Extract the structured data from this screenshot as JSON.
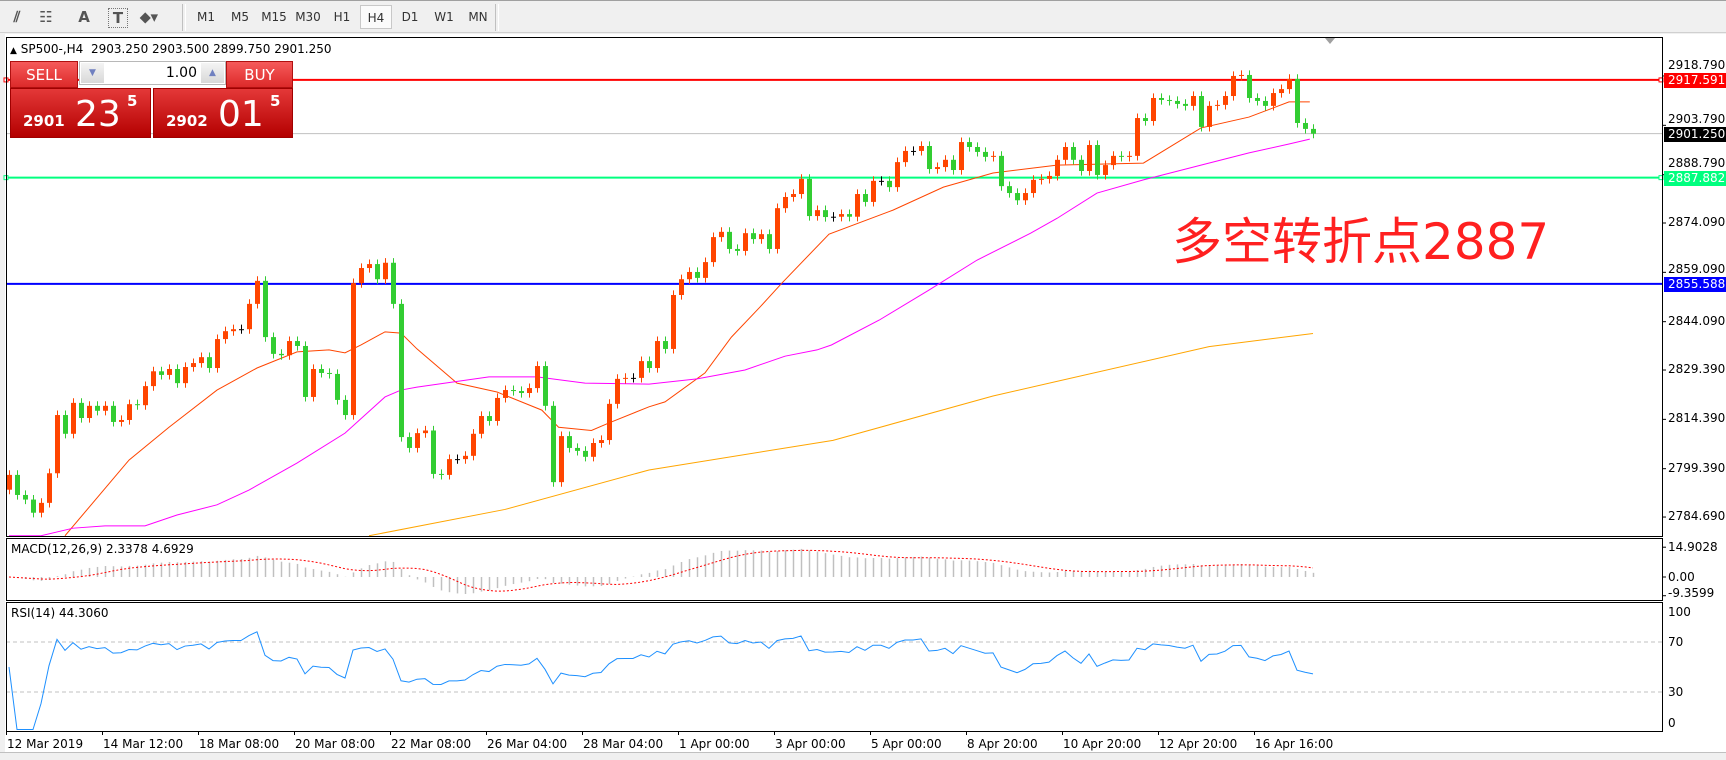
{
  "toolbar": {
    "tools": [
      {
        "icon": "equidistant-channel-icon",
        "glyph": "⫽"
      },
      {
        "icon": "fibonacci-icon",
        "glyph": "☷"
      },
      {
        "icon": "text-icon",
        "glyph": "A"
      },
      {
        "icon": "text-label-icon",
        "glyph": "T"
      },
      {
        "icon": "arrows-icon",
        "glyph": "⬥▾"
      }
    ],
    "timeframes": [
      "M1",
      "M5",
      "M15",
      "M30",
      "H1",
      "H4",
      "D1",
      "W1",
      "MN"
    ],
    "active_timeframe": "H4"
  },
  "chart": {
    "symbol": "SP500-,H4",
    "open": "2903.250",
    "high": "2903.500",
    "low": "2899.750",
    "close": "2901.250"
  },
  "trade": {
    "sell_label": "SELL",
    "buy_label": "BUY",
    "lot": "1.00",
    "sell_prefix": "2901",
    "sell_main": "23",
    "sell_sup": "5",
    "buy_prefix": "2902",
    "buy_main": "01",
    "buy_sup": "5"
  },
  "annotation": "多空转折点2887",
  "colors": {
    "bull": "#ff4500",
    "bear": "#32cd32",
    "doji": "#000000",
    "resistance": "#ff0000",
    "pivot": "#00ff7f",
    "support": "#0000ff",
    "bid": "#c0c0c0",
    "ma_fast": "#ff4500",
    "ma_mid": "#ff00ff",
    "ma_slow": "#ffa500",
    "rsi": "#1e90ff",
    "macd_hist": "#c0c0c0",
    "macd_signal": "#ff0000"
  },
  "chart_data": {
    "type": "candlestick",
    "close": [
      2797.5,
      2791.4,
      2790,
      2786,
      2789,
      2798,
      2815.7,
      2810,
      2819.4,
      2814.8,
      2818.5,
      2817,
      2818.5,
      2813.6,
      2814.2,
      2819,
      2818.7,
      2824.5,
      2829,
      2827.9,
      2829.7,
      2825.4,
      2830.3,
      2831.5,
      2833.3,
      2830,
      2838.8,
      2841.2,
      2841.8,
      2841.8,
      2849.5,
      2856.5,
      2839.4,
      2834.3,
      2833.9,
      2838.2,
      2836.7,
      2821.2,
      2829.7,
      2828.5,
      2828.2,
      2820.3,
      2815.7,
      2855.8,
      2860.4,
      2861.6,
      2857,
      2862,
      2849.5,
      2809,
      2805.7,
      2810.2,
      2811,
      2797.8,
      2797.5,
      2802.3,
      2802.3,
      2803.3,
      2810,
      2815.4,
      2813.9,
      2820.9,
      2823.3,
      2823,
      2822.4,
      2823.9,
      2830.6,
      2818.5,
      2795.3,
      2809.3,
      2805.7,
      2804.8,
      2803,
      2807.2,
      2808.1,
      2819.1,
      2826.7,
      2827,
      2827,
      2832.1,
      2830,
      2838.2,
      2835.8,
      2852.2,
      2857,
      2859.2,
      2857.4,
      2862.2,
      2869.8,
      2871.4,
      2866.2,
      2865.6,
      2871,
      2869.2,
      2870.7,
      2866.2,
      2878.6,
      2882,
      2882.9,
      2887.5,
      2876.2,
      2878,
      2875.9,
      2876,
      2876.8,
      2876,
      2882.9,
      2880.5,
      2886.9,
      2886.9,
      2885,
      2892.6,
      2896,
      2896,
      2897.5,
      2890.5,
      2891.1,
      2893.3,
      2890.2,
      2898.7,
      2897.2,
      2895.7,
      2894.2,
      2894.5,
      2885.3,
      2883.2,
      2881,
      2883.2,
      2887.2,
      2887.5,
      2888.4,
      2893.3,
      2897.2,
      2893.3,
      2889.9,
      2897.8,
      2888.7,
      2891.7,
      2894.5,
      2894.2,
      2894.5,
      2906,
      2905.1,
      2912.1,
      2911.5,
      2911.2,
      2910.3,
      2909.7,
      2912.7,
      2903.3,
      2909.7,
      2910,
      2912.7,
      2918.8,
      2919.1,
      2912.1,
      2911.2,
      2909.7,
      2913.6,
      2914.8,
      2917.9,
      2904.5,
      2902.7,
      2901.25
    ],
    "moving_averages": [
      {
        "color": "ma_fast",
        "points": [
          [
            7,
            2779
          ],
          [
            15,
            2802
          ],
          [
            20,
            2812
          ],
          [
            26,
            2823.3
          ],
          [
            31,
            2830
          ],
          [
            36,
            2834.9
          ],
          [
            40,
            2835.5
          ],
          [
            42,
            2834.6
          ],
          [
            44,
            2837
          ],
          [
            47,
            2841
          ],
          [
            49,
            2840.6
          ],
          [
            51,
            2835.8
          ],
          [
            56,
            2825.4
          ],
          [
            61,
            2822.7
          ],
          [
            66.6,
            2817.2
          ],
          [
            68.7,
            2812
          ],
          [
            72.8,
            2811
          ],
          [
            75,
            2813.3
          ],
          [
            80,
            2818.2
          ],
          [
            82,
            2819.7
          ],
          [
            87,
            2828.5
          ],
          [
            90.3,
            2839.4
          ],
          [
            93.9,
            2848.6
          ],
          [
            96.6,
            2855.8
          ],
          [
            102.5,
            2870.7
          ],
          [
            110.5,
            2878
          ],
          [
            116.8,
            2885
          ],
          [
            123,
            2889.3
          ],
          [
            131,
            2891.7
          ],
          [
            141.8,
            2892.3
          ],
          [
            149,
            2903
          ],
          [
            155,
            2906.3
          ],
          [
            160,
            2910.9
          ],
          [
            162.6,
            2910.9
          ]
        ]
      },
      {
        "color": "ma_mid",
        "points": [
          [
            0,
            2779
          ],
          [
            4,
            2779
          ],
          [
            8,
            2781.3
          ],
          [
            12,
            2782
          ],
          [
            17,
            2782
          ],
          [
            21,
            2785.3
          ],
          [
            26,
            2788.4
          ],
          [
            30,
            2792.9
          ],
          [
            36,
            2801.1
          ],
          [
            42,
            2810.2
          ],
          [
            47,
            2821.2
          ],
          [
            49,
            2823.3
          ],
          [
            51,
            2824.2
          ],
          [
            60,
            2827.3
          ],
          [
            66,
            2827.3
          ],
          [
            72,
            2825.4
          ],
          [
            80,
            2825.1
          ],
          [
            86,
            2826.7
          ],
          [
            92,
            2829.4
          ],
          [
            97,
            2833.6
          ],
          [
            101,
            2835.5
          ],
          [
            102.8,
            2837
          ],
          [
            108.8,
            2844.6
          ],
          [
            115,
            2853.7
          ],
          [
            121,
            2862.8
          ],
          [
            127.7,
            2871
          ],
          [
            131,
            2875.5
          ],
          [
            136,
            2883.2
          ],
          [
            141.8,
            2887.2
          ],
          [
            149,
            2891.7
          ],
          [
            155,
            2895.4
          ],
          [
            160,
            2898.1
          ],
          [
            162.6,
            2899.6
          ]
        ]
      },
      {
        "color": "ma_slow",
        "points": [
          [
            45,
            2779
          ],
          [
            62,
            2787
          ],
          [
            80,
            2799
          ],
          [
            103,
            2808
          ],
          [
            123,
            2821.5
          ],
          [
            150,
            2836.5
          ],
          [
            163,
            2840.5
          ]
        ]
      }
    ],
    "hlines": [
      {
        "price": 2917.591,
        "label": "2917.591",
        "color": "resistance"
      },
      {
        "price": 2901.25,
        "label": "2901.250",
        "color": "bid"
      },
      {
        "price": 2887.882,
        "label": "2887.882",
        "color": "pivot"
      },
      {
        "price": 2855.588,
        "label": "2855.588",
        "color": "support"
      }
    ],
    "price_ticks": [
      2918.79,
      2903.79,
      2888.79,
      2874.09,
      2859.09,
      2844.09,
      2829.39,
      2814.39,
      2799.39,
      2784.69
    ],
    "price_tick_labels": [
      "2918.790",
      "2903.790",
      "2888.790",
      "2874.090",
      "2859.090",
      "2844.090",
      "2829.390",
      "2814.390",
      "2799.390",
      "2784.690"
    ],
    "time_labels": [
      "12 Mar 2019",
      "14 Mar 12:00",
      "18 Mar 08:00",
      "20 Mar 08:00",
      "22 Mar 08:00",
      "26 Mar 04:00",
      "28 Mar 04:00",
      "1 Apr 00:00",
      "3 Apr 00:00",
      "5 Apr 00:00",
      "8 Apr 20:00",
      "10 Apr 20:00",
      "12 Apr 20:00",
      "16 Apr 16:00"
    ],
    "macd": {
      "label": "MACD(12,26,9) 2.3378 4.6929",
      "ticks": [
        14.9028,
        0,
        -9.3599
      ],
      "tick_labels": [
        "14.9028",
        "0.00",
        "-9.3599"
      ]
    },
    "rsi": {
      "label": "RSI(14) 44.3060",
      "ticks": [
        100,
        70,
        30,
        0
      ],
      "tick_labels": [
        "100",
        "70",
        "30",
        "0"
      ],
      "levels": [
        70,
        30
      ]
    }
  }
}
